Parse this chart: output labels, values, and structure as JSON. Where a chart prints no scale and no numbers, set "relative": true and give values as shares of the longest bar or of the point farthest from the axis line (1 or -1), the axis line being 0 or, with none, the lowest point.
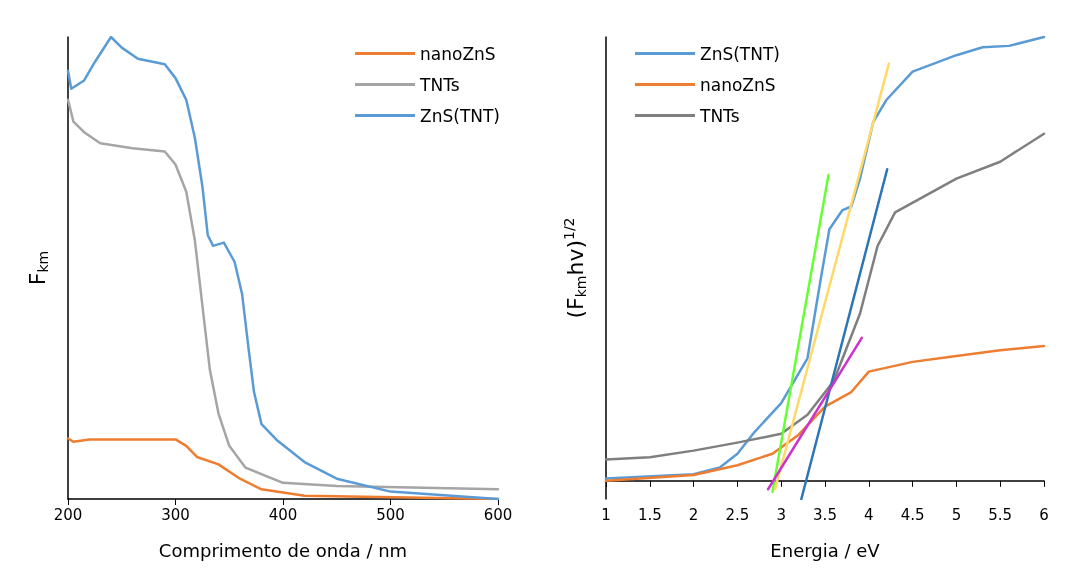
{
  "chart_data": [
    {
      "type": "line",
      "relative": true,
      "xlabel": "Comprimento de onda / nm",
      "ylabel": "F$_{km}$",
      "xlim": [
        200,
        600
      ],
      "xticks": [
        200,
        300,
        400,
        500,
        600
      ],
      "legend": "top right",
      "grid": false,
      "marker": "none",
      "series": [
        {
          "name": "nanoZnS",
          "color": "#ed7d31",
          "x": [
            200,
            205,
            220,
            260,
            300,
            310,
            320,
            340,
            360,
            380,
            420,
            600
          ],
          "values": [
            0.131,
            0.124,
            0.129,
            0.129,
            0.129,
            0.115,
            0.091,
            0.075,
            0.044,
            0.021,
            0.007,
            0
          ]
        },
        {
          "name": "TNTs",
          "color": "#a5a5a5",
          "x": [
            200,
            205,
            215,
            230,
            260,
            290,
            300,
            310,
            318,
            325,
            332,
            340,
            350,
            365,
            400,
            450,
            600
          ],
          "values": [
            0.864,
            0.817,
            0.794,
            0.77,
            0.759,
            0.752,
            0.724,
            0.665,
            0.56,
            0.419,
            0.279,
            0.185,
            0.115,
            0.068,
            0.035,
            0.028,
            0.021
          ]
        },
        {
          "name": "ZnS(TNT)",
          "color": "#5b9bd5",
          "x": [
            200,
            203,
            215,
            225,
            240,
            250,
            265,
            290,
            300,
            310,
            318,
            325,
            330,
            335,
            345,
            355,
            362,
            368,
            373,
            380,
            395,
            420,
            450,
            500,
            600
          ],
          "values": [
            0.927,
            0.888,
            0.906,
            0.946,
            1,
            0.977,
            0.953,
            0.941,
            0.911,
            0.864,
            0.782,
            0.677,
            0.571,
            0.548,
            0.555,
            0.513,
            0.443,
            0.325,
            0.232,
            0.162,
            0.126,
            0.08,
            0.044,
            0.016,
            0
          ]
        }
      ]
    },
    {
      "type": "line",
      "relative": true,
      "xlabel": "Energia / eV",
      "ylabel": "(F$_{km}$hv)$^{1/2}$",
      "xlim": [
        1,
        6
      ],
      "xticks": [
        1,
        1.5,
        2,
        2.5,
        3,
        3.5,
        4,
        4.5,
        5,
        5.5,
        6
      ],
      "legend": "top left",
      "grid": false,
      "marker": "none",
      "series": [
        {
          "name": "ZnS(TNT)",
          "color": "#5b9bd5",
          "x": [
            1,
            2,
            2.3,
            2.5,
            2.7,
            3,
            3.3,
            3.45,
            3.55,
            3.7,
            3.8,
            3.9,
            4.05,
            4.2,
            4.5,
            5,
            5.3,
            5.6,
            6
          ],
          "values": [
            0.005,
            0.015,
            0.03,
            0.061,
            0.111,
            0.175,
            0.276,
            0.453,
            0.567,
            0.61,
            0.618,
            0.681,
            0.808,
            0.858,
            0.922,
            0.959,
            0.977,
            0.98,
            1
          ]
        },
        {
          "name": "nanoZnS",
          "color": "#ed7d31",
          "x": [
            1,
            2,
            2.5,
            2.9,
            3.2,
            3.5,
            3.8,
            4,
            4.5,
            5,
            5.5,
            6
          ],
          "values": [
            0,
            0.013,
            0.035,
            0.061,
            0.104,
            0.167,
            0.2,
            0.246,
            0.268,
            0.281,
            0.294,
            0.304
          ]
        },
        {
          "name": "TNTs",
          "color": "#7f7f7f",
          "x": [
            1,
            1.5,
            2,
            2.5,
            3,
            3.3,
            3.6,
            3.9,
            4.1,
            4.3,
            5,
            5.5,
            6
          ],
          "values": [
            0.048,
            0.053,
            0.068,
            0.086,
            0.106,
            0.149,
            0.225,
            0.377,
            0.529,
            0.605,
            0.681,
            0.719,
            0.782
          ]
        },
        {
          "color": "#66ff33",
          "x": [
            2.9,
            3.54
          ],
          "values": [
            -0.025,
            0.689
          ]
        },
        {
          "color": "#ffd966",
          "x": [
            2.93,
            4.23
          ],
          "values": [
            -0.019,
            0.94
          ]
        },
        {
          "color": "#2e75b6",
          "x": [
            3.23,
            4.21
          ],
          "values": [
            -0.041,
            0.702
          ]
        },
        {
          "color": "#cc33cc",
          "x": [
            2.85,
            3.92
          ],
          "values": [
            -0.019,
            0.322
          ]
        }
      ]
    }
  ]
}
